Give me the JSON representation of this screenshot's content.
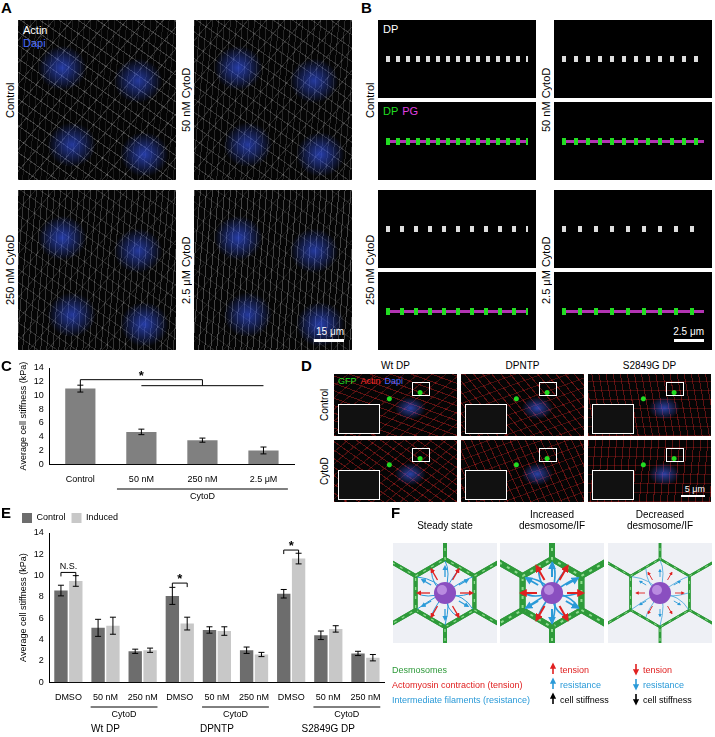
{
  "panel_letters": [
    "A",
    "B",
    "C",
    "D",
    "E",
    "F"
  ],
  "panel_A": {
    "channels": [
      {
        "text": "Actin",
        "color": "#ffffff"
      },
      {
        "text": "Dapi",
        "color": "#4a6cff"
      }
    ],
    "images": [
      "Control",
      "50 nM CytoD",
      "250 nM CytoD",
      "2.5 μM CytoD"
    ],
    "scale_bar": "15 μm"
  },
  "panel_B": {
    "images": [
      "Control",
      "50 nM CytoD",
      "250 nM CytoD",
      "2.5 μM CytoD"
    ],
    "top_channels": [
      {
        "text": "DP",
        "color": "#ffffff"
      }
    ],
    "bottom_channels": [
      {
        "text": "DP",
        "color": "#22dd22"
      },
      {
        "text": "PG",
        "color": "#e040e0"
      }
    ],
    "scale_bar": "2.5 μm"
  },
  "panel_D": {
    "channels": [
      {
        "text": "GFP",
        "color": "#22dd22"
      },
      {
        "text": "Actin",
        "color": "#ff2a2a"
      },
      {
        "text": "Dapi",
        "color": "#4a6cff"
      }
    ],
    "columns": [
      "Wt DP",
      "DPNTP",
      "S2849G DP"
    ],
    "rows": [
      "Control",
      "CytoD"
    ],
    "scale_bar": "5 μm"
  },
  "panel_F": {
    "stages": [
      {
        "title": [
          "Steady state"
        ]
      },
      {
        "title": [
          "Increased",
          "desmosome/IF"
        ],
        "changes": [
          {
            "text": "tension",
            "direction": "up",
            "color": "#e02020"
          },
          {
            "text": "resistance",
            "direction": "up",
            "color": "#2a9ad8"
          },
          {
            "text": "cell stiffness",
            "direction": "up",
            "color": "#000000"
          }
        ]
      },
      {
        "title": [
          "Decreased",
          "desmosome/IF"
        ],
        "changes": [
          {
            "text": "tension",
            "direction": "down",
            "color": "#e02020"
          },
          {
            "text": "resistance",
            "direction": "down",
            "color": "#2a9ad8"
          },
          {
            "text": "cell stiffness",
            "direction": "down",
            "color": "#000000"
          }
        ]
      }
    ],
    "key": [
      {
        "text": "Desmosomes",
        "color": "#2e9a3a"
      },
      {
        "text": "Actomyosin contraction (tension)",
        "color": "#e02020"
      },
      {
        "text": "Intermediate filaments (resistance)",
        "color": "#2a9ad8"
      }
    ]
  },
  "chart_data": [
    {
      "type": "bar",
      "categories": [
        "Control",
        "50 nM",
        "250 nM",
        "2.5 μM"
      ],
      "values": [
        11.0,
        4.7,
        3.5,
        2.0
      ],
      "errors": [
        0.5,
        0.4,
        0.3,
        0.5
      ],
      "color": "#808080",
      "y_label": "Average cell stiffness (kPa)",
      "ylim": [
        0,
        14
      ],
      "yticks": [
        0,
        2,
        4,
        6,
        8,
        10,
        12,
        14
      ],
      "grid": false,
      "groups": [
        {
          "label": "CytoD",
          "from": 1,
          "to": 3
        }
      ],
      "annotations": [
        {
          "text": "*",
          "from": 0,
          "to": [
            1,
            3
          ],
          "y": 12.3
        }
      ]
    },
    {
      "type": "bar",
      "categories": [
        "DMSO",
        "50 nM",
        "250 nM",
        "DMSO",
        "50 nM",
        "250 nM",
        "DMSO",
        "50 nM",
        "250 nM"
      ],
      "series": [
        {
          "name": "Control",
          "color": "#6d6d6d",
          "values": [
            8.6,
            5.1,
            2.9,
            8.1,
            4.9,
            3.0,
            8.3,
            4.4,
            2.7
          ],
          "errors": [
            0.5,
            0.8,
            0.2,
            0.8,
            0.3,
            0.3,
            0.4,
            0.4,
            0.2
          ]
        },
        {
          "name": "Induced",
          "color": "#c8c8c8",
          "values": [
            9.5,
            5.3,
            3.0,
            5.5,
            4.8,
            2.6,
            11.6,
            5.0,
            2.3
          ],
          "errors": [
            0.5,
            0.8,
            0.2,
            0.6,
            0.4,
            0.2,
            0.5,
            0.3,
            0.3
          ]
        }
      ],
      "y_label": "Average cell stiffness (kPa)",
      "ylim": [
        0,
        14
      ],
      "yticks": [
        0,
        2,
        4,
        6,
        8,
        10,
        12,
        14
      ],
      "grid": false,
      "legend": "top-left",
      "groups": [
        {
          "label": "CytoD",
          "from": 1,
          "to": 2
        },
        {
          "label": "CytoD",
          "from": 4,
          "to": 5
        },
        {
          "label": "CytoD",
          "from": 7,
          "to": 8
        }
      ],
      "super_groups": [
        {
          "label": "Wt DP",
          "from": 0,
          "to": 2
        },
        {
          "label": "DPNTP",
          "from": 3,
          "to": 5
        },
        {
          "label": "S2849G DP",
          "from": 6,
          "to": 8
        }
      ],
      "annotations": [
        {
          "text": "N.S.",
          "category": 0,
          "y": 10.3
        },
        {
          "text": "*",
          "category": 3,
          "y": 9.3
        },
        {
          "text": "*",
          "category": 6,
          "y": 12.4
        }
      ]
    }
  ]
}
